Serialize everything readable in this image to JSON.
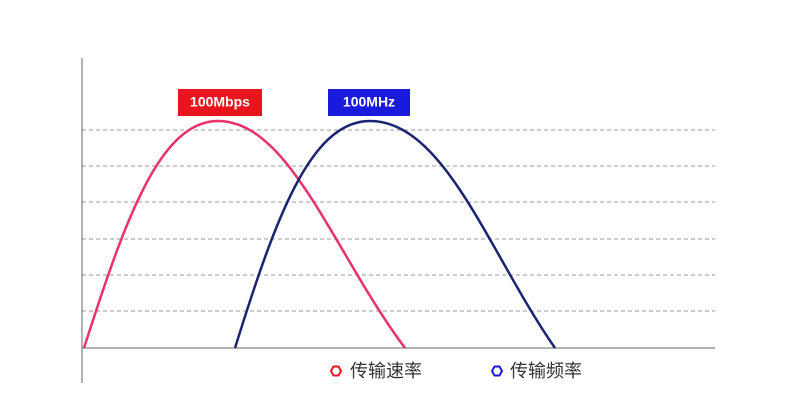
{
  "labels": {
    "rate": "100Mbps",
    "frequency": "100MHz"
  },
  "legend": [
    {
      "name": "传输速率"
    },
    {
      "name": "传输频率"
    }
  ]
}
